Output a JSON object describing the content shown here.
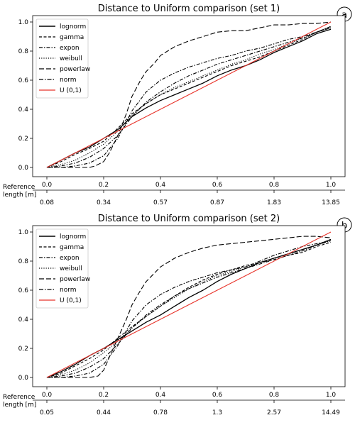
{
  "chart_data": [
    {
      "type": "line",
      "title": "Distance to Uniform comparison (set 1)",
      "panel_label": "a",
      "xlabel": "",
      "ylabel": "",
      "xlim": [
        0,
        1
      ],
      "ylim": [
        0,
        1
      ],
      "xticks": [
        "0.0",
        "0.2",
        "0.4",
        "0.6",
        "0.8",
        "1.0"
      ],
      "yticks": [
        "0.0",
        "0.2",
        "0.4",
        "0.6",
        "0.8",
        "1.0"
      ],
      "legend_position": "top-left",
      "reference_axis": {
        "label": "Reference length [m]",
        "ticks": [
          "0.08",
          "0.34",
          "0.57",
          "0.87",
          "1.83",
          "13.85"
        ]
      },
      "series": [
        {
          "name": "lognorm",
          "style": "solid",
          "color": "#000000",
          "x": [
            0,
            0.05,
            0.1,
            0.15,
            0.2,
            0.25,
            0.3,
            0.35,
            0.4,
            0.45,
            0.5,
            0.55,
            0.6,
            0.65,
            0.7,
            0.75,
            0.8,
            0.85,
            0.9,
            0.95,
            1.0
          ],
          "y": [
            0,
            0.05,
            0.1,
            0.14,
            0.2,
            0.26,
            0.35,
            0.41,
            0.46,
            0.5,
            0.54,
            0.58,
            0.63,
            0.67,
            0.7,
            0.74,
            0.79,
            0.83,
            0.87,
            0.92,
            0.95
          ]
        },
        {
          "name": "gamma",
          "style": "dashed",
          "color": "#000000",
          "x": [
            0,
            0.05,
            0.1,
            0.15,
            0.2,
            0.25,
            0.3,
            0.35,
            0.4,
            0.45,
            0.5,
            0.55,
            0.6,
            0.65,
            0.7,
            0.75,
            0.8,
            0.85,
            0.9,
            0.95,
            1.0
          ],
          "y": [
            0,
            0.04,
            0.09,
            0.13,
            0.18,
            0.27,
            0.37,
            0.44,
            0.5,
            0.54,
            0.58,
            0.62,
            0.66,
            0.7,
            0.73,
            0.76,
            0.8,
            0.84,
            0.88,
            0.93,
            0.96
          ]
        },
        {
          "name": "expon",
          "style": "dashdot",
          "color": "#000000",
          "x": [
            0,
            0.05,
            0.1,
            0.15,
            0.2,
            0.25,
            0.3,
            0.35,
            0.4,
            0.45,
            0.5,
            0.55,
            0.6,
            0.65,
            0.7,
            0.75,
            0.8,
            0.85,
            0.9,
            0.95,
            1.0
          ],
          "y": [
            0,
            0.01,
            0.03,
            0.07,
            0.13,
            0.22,
            0.35,
            0.45,
            0.52,
            0.58,
            0.63,
            0.67,
            0.71,
            0.74,
            0.77,
            0.8,
            0.83,
            0.86,
            0.89,
            0.93,
            0.97
          ]
        },
        {
          "name": "weibull",
          "style": "dotted",
          "color": "#000000",
          "x": [
            0,
            0.05,
            0.1,
            0.15,
            0.2,
            0.25,
            0.3,
            0.35,
            0.4,
            0.45,
            0.5,
            0.55,
            0.6,
            0.65,
            0.7,
            0.75,
            0.8,
            0.85,
            0.9,
            0.95,
            1.0
          ],
          "y": [
            0,
            0.02,
            0.05,
            0.1,
            0.16,
            0.25,
            0.36,
            0.44,
            0.5,
            0.55,
            0.59,
            0.63,
            0.67,
            0.71,
            0.74,
            0.78,
            0.81,
            0.85,
            0.89,
            0.93,
            0.97
          ]
        },
        {
          "name": "powerlaw",
          "style": "longdash",
          "color": "#000000",
          "x": [
            0,
            0.05,
            0.1,
            0.15,
            0.17,
            0.2,
            0.22,
            0.25,
            0.28,
            0.3,
            0.33,
            0.35,
            0.38,
            0.4,
            0.45,
            0.5,
            0.55,
            0.6,
            0.65,
            0.7,
            0.75,
            0.8,
            0.85,
            0.9,
            0.95,
            1.0
          ],
          "y": [
            0,
            0,
            0,
            0,
            0.01,
            0.04,
            0.1,
            0.22,
            0.37,
            0.49,
            0.6,
            0.66,
            0.72,
            0.77,
            0.83,
            0.87,
            0.9,
            0.93,
            0.94,
            0.94,
            0.96,
            0.98,
            0.98,
            0.99,
            0.99,
            1.0
          ]
        },
        {
          "name": "norm",
          "style": "dashdot",
          "color": "#000000",
          "x": [
            0,
            0.05,
            0.1,
            0.15,
            0.2,
            0.25,
            0.3,
            0.35,
            0.4,
            0.45,
            0.5,
            0.55,
            0.6,
            0.65,
            0.7,
            0.75,
            0.8,
            0.85,
            0.9,
            0.95,
            1.0
          ],
          "y": [
            0,
            0,
            0.01,
            0.03,
            0.08,
            0.2,
            0.39,
            0.52,
            0.6,
            0.65,
            0.69,
            0.72,
            0.75,
            0.77,
            0.8,
            0.82,
            0.85,
            0.88,
            0.9,
            0.93,
            0.96
          ]
        },
        {
          "name": "U (0,1)",
          "style": "solid",
          "color": "#e8332a",
          "x": [
            0,
            1
          ],
          "y": [
            0,
            1
          ]
        }
      ]
    },
    {
      "type": "line",
      "title": "Distance to Uniform comparison (set 2)",
      "panel_label": "b",
      "xlabel": "",
      "ylabel": "",
      "xlim": [
        0,
        1
      ],
      "ylim": [
        0,
        1
      ],
      "xticks": [
        "0.0",
        "0.2",
        "0.4",
        "0.6",
        "0.8",
        "1.0"
      ],
      "yticks": [
        "0.0",
        "0.2",
        "0.4",
        "0.6",
        "0.8",
        "1.0"
      ],
      "legend_position": "top-left",
      "reference_axis": {
        "label": "Reference length [m]",
        "ticks": [
          "0.05",
          "0.44",
          "0.78",
          "1.3",
          "2.57",
          "14.49"
        ]
      },
      "series": [
        {
          "name": "lognorm",
          "style": "solid",
          "color": "#000000",
          "x": [
            0,
            0.05,
            0.1,
            0.15,
            0.2,
            0.25,
            0.3,
            0.35,
            0.4,
            0.45,
            0.5,
            0.55,
            0.6,
            0.65,
            0.7,
            0.75,
            0.8,
            0.85,
            0.9,
            0.95,
            1.0
          ],
          "y": [
            0,
            0.04,
            0.09,
            0.15,
            0.2,
            0.26,
            0.32,
            0.38,
            0.43,
            0.49,
            0.55,
            0.6,
            0.66,
            0.71,
            0.75,
            0.79,
            0.82,
            0.85,
            0.88,
            0.91,
            0.95
          ]
        },
        {
          "name": "gamma",
          "style": "dashed",
          "color": "#000000",
          "x": [
            0,
            0.05,
            0.1,
            0.15,
            0.2,
            0.25,
            0.3,
            0.35,
            0.4,
            0.45,
            0.5,
            0.55,
            0.6,
            0.65,
            0.7,
            0.75,
            0.8,
            0.85,
            0.9,
            0.95,
            1.0
          ],
          "y": [
            0,
            0.03,
            0.08,
            0.13,
            0.19,
            0.27,
            0.35,
            0.42,
            0.49,
            0.56,
            0.62,
            0.67,
            0.71,
            0.74,
            0.77,
            0.79,
            0.81,
            0.84,
            0.86,
            0.9,
            0.93
          ]
        },
        {
          "name": "expon",
          "style": "dashdot",
          "color": "#000000",
          "x": [
            0,
            0.05,
            0.1,
            0.15,
            0.2,
            0.25,
            0.3,
            0.35,
            0.4,
            0.45,
            0.5,
            0.55,
            0.6,
            0.65,
            0.7,
            0.75,
            0.8,
            0.85,
            0.9,
            0.95,
            1.0
          ],
          "y": [
            0,
            0.01,
            0.03,
            0.07,
            0.13,
            0.23,
            0.34,
            0.43,
            0.5,
            0.56,
            0.61,
            0.65,
            0.69,
            0.72,
            0.75,
            0.78,
            0.81,
            0.84,
            0.87,
            0.91,
            0.94
          ]
        },
        {
          "name": "weibull",
          "style": "dotted",
          "color": "#000000",
          "x": [
            0,
            0.05,
            0.1,
            0.15,
            0.2,
            0.25,
            0.3,
            0.35,
            0.4,
            0.45,
            0.5,
            0.55,
            0.6,
            0.65,
            0.7,
            0.75,
            0.8,
            0.85,
            0.9,
            0.95,
            1.0
          ],
          "y": [
            0,
            0.02,
            0.05,
            0.1,
            0.17,
            0.25,
            0.34,
            0.42,
            0.49,
            0.55,
            0.61,
            0.66,
            0.7,
            0.73,
            0.76,
            0.79,
            0.82,
            0.85,
            0.88,
            0.91,
            0.94
          ]
        },
        {
          "name": "powerlaw",
          "style": "longdash",
          "color": "#000000",
          "x": [
            0,
            0.05,
            0.1,
            0.15,
            0.18,
            0.2,
            0.22,
            0.25,
            0.28,
            0.3,
            0.33,
            0.35,
            0.38,
            0.4,
            0.45,
            0.5,
            0.55,
            0.6,
            0.65,
            0.7,
            0.75,
            0.8,
            0.85,
            0.9,
            0.95,
            1.0
          ],
          "y": [
            0,
            0,
            0,
            0,
            0.01,
            0.05,
            0.14,
            0.27,
            0.4,
            0.5,
            0.6,
            0.66,
            0.72,
            0.76,
            0.82,
            0.86,
            0.89,
            0.91,
            0.92,
            0.93,
            0.94,
            0.95,
            0.96,
            0.97,
            0.97,
            0.96
          ]
        },
        {
          "name": "norm",
          "style": "dashdot",
          "color": "#000000",
          "x": [
            0,
            0.05,
            0.1,
            0.15,
            0.2,
            0.25,
            0.3,
            0.35,
            0.4,
            0.45,
            0.5,
            0.55,
            0.6,
            0.65,
            0.7,
            0.75,
            0.8,
            0.85,
            0.9,
            0.95,
            1.0
          ],
          "y": [
            0,
            0,
            0.01,
            0.03,
            0.09,
            0.22,
            0.39,
            0.5,
            0.57,
            0.62,
            0.66,
            0.69,
            0.72,
            0.74,
            0.76,
            0.8,
            0.84,
            0.87,
            0.9,
            0.92,
            0.94
          ]
        },
        {
          "name": "U (0,1)",
          "style": "solid",
          "color": "#e8332a",
          "x": [
            0,
            1
          ],
          "y": [
            0,
            1
          ]
        }
      ]
    }
  ]
}
